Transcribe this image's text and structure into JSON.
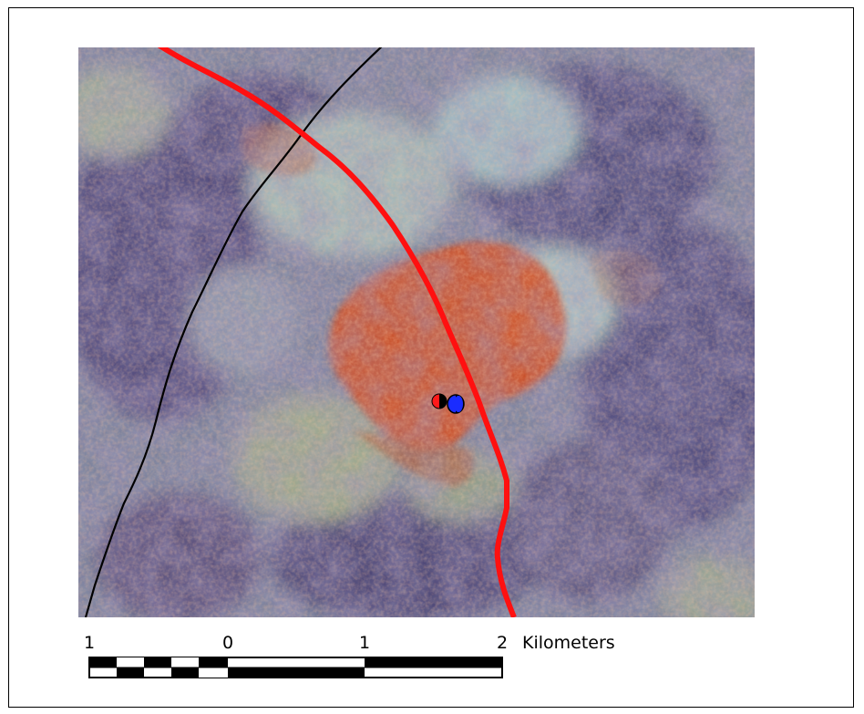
{
  "map": {
    "symbols": {
      "road_primary_color": "#ff0000",
      "road_secondary_color": "#000000",
      "site_marker_a_colors": [
        "#ff0000",
        "#000000"
      ],
      "site_marker_b_colors": [
        "#1a2cff",
        "#000000"
      ],
      "vegetation_patch_color": "#d0421a"
    }
  },
  "scalebar": {
    "ticks": [
      "1",
      "0",
      "1",
      "2"
    ],
    "units": "Kilometers"
  }
}
